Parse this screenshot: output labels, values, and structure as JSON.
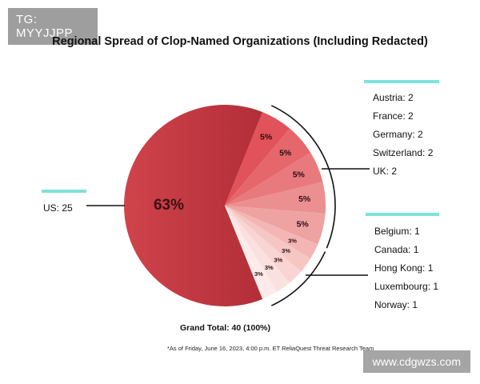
{
  "watermarks": {
    "top_left": "TG: MYYJJPP",
    "bottom_right": "www.cdgwzs.com"
  },
  "chart_data": {
    "type": "pie",
    "title": "Regional Spread of Clop-Named Organizations (Including Redacted)",
    "slices": [
      {
        "label": "US",
        "value": 25,
        "pct_label": "63%",
        "color": "#c8363f"
      },
      {
        "label": "UK",
        "value": 2,
        "pct_label": "5%",
        "color": "#e1525a"
      },
      {
        "label": "Switzerland",
        "value": 2,
        "pct_label": "5%",
        "color": "#e5666b"
      },
      {
        "label": "Germany",
        "value": 2,
        "pct_label": "5%",
        "color": "#e87a7d"
      },
      {
        "label": "France",
        "value": 2,
        "pct_label": "5%",
        "color": "#ec8f90"
      },
      {
        "label": "Austria",
        "value": 2,
        "pct_label": "5%",
        "color": "#efa2a2"
      },
      {
        "label": "Norway",
        "value": 1,
        "pct_label": "3%",
        "color": "#f3b6b4"
      },
      {
        "label": "Luxembourg",
        "value": 1,
        "pct_label": "3%",
        "color": "#f6c6c4"
      },
      {
        "label": "Hong Kong",
        "value": 1,
        "pct_label": "3%",
        "color": "#f8d4d2"
      },
      {
        "label": "Canada",
        "value": 1,
        "pct_label": "3%",
        "color": "#fae1df"
      },
      {
        "label": "Belgium",
        "value": 1,
        "pct_label": "3%",
        "color": "#fcebea"
      }
    ],
    "us_label": "US: 25",
    "group_1_labels": [
      "Austria: 2",
      "France: 2",
      "Germany: 2",
      "Switzerland: 2",
      "UK: 2"
    ],
    "group_2_labels": [
      "Belgium: 1",
      "Canada: 1",
      "Hong Kong: 1",
      "Luxembourg: 1",
      "Norway: 1"
    ],
    "grand_total": "Grand Total: 40 (100%)",
    "footnote": "*As of Friday, June 16, 2023, 4:00 p.m. ET ReliaQuest Threat Research Team",
    "accent_color": "#7fe3d8"
  }
}
